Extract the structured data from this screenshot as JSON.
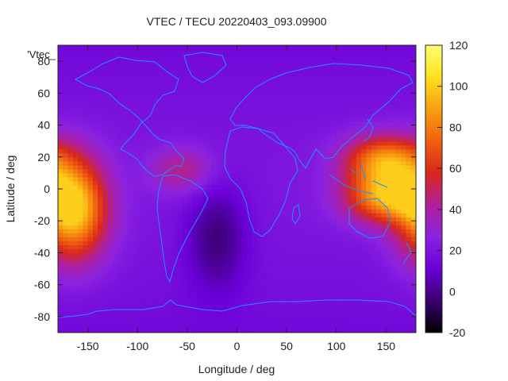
{
  "chart_data": {
    "type": "heatmap",
    "title": "VTEC / TECU 20220403_093.09900",
    "xlabel": "Longitude / deg",
    "ylabel": "Latitude / deg",
    "series_key_label": "'Vtec_",
    "xlim": [
      -180,
      180
    ],
    "ylim": [
      -90,
      90
    ],
    "x_ticks": [
      -150,
      -100,
      -50,
      0,
      50,
      100,
      150
    ],
    "y_ticks": [
      -80,
      -60,
      -40,
      -20,
      0,
      20,
      40,
      60,
      80
    ],
    "colorbar": {
      "range": [
        -20,
        120
      ],
      "ticks": [
        -20,
        0,
        20,
        40,
        60,
        80,
        100,
        120
      ],
      "palette": [
        "#000000",
        "#3a0070",
        "#6a00d8",
        "#8a22e0",
        "#b0209a",
        "#d8281a",
        "#f06010",
        "#f8a010",
        "#ffe020",
        "#ffff70"
      ]
    },
    "coastline_color": "#1e90ff",
    "features": [
      {
        "name": "pacific-peak",
        "lon": -165,
        "lat": -13,
        "value": 95
      },
      {
        "name": "asia-pacific-peak-north",
        "lon": 148,
        "lat": 18,
        "value": 90
      },
      {
        "name": "asia-pacific-peak-south",
        "lon": 148,
        "lat": -5,
        "value": 90
      },
      {
        "name": "south-atlantic-minimum",
        "lon": -20,
        "lat": -30,
        "value": -8
      },
      {
        "name": "south-america-enhancement",
        "lon": -55,
        "lat": 12,
        "value": 55
      },
      {
        "name": "background",
        "value": 15
      }
    ]
  }
}
